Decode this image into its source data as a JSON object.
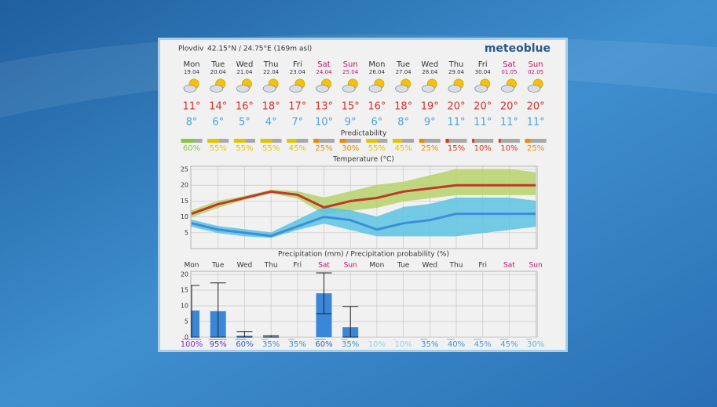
{
  "header": {
    "location": "Plovdiv",
    "coordinates": "42.15°N / 24.75°E (169m asl)",
    "brand": "meteoblue"
  },
  "days": [
    {
      "day": "Mon",
      "date": "19.04",
      "max": "11°",
      "min": "8°",
      "color": "#333333"
    },
    {
      "day": "Tue",
      "date": "20.04",
      "max": "14°",
      "min": "6°",
      "color": "#333333"
    },
    {
      "day": "Wed",
      "date": "21.04",
      "max": "16°",
      "min": "5°",
      "color": "#333333"
    },
    {
      "day": "Thu",
      "date": "22.04",
      "max": "18°",
      "min": "4°",
      "color": "#333333"
    },
    {
      "day": "Fri",
      "date": "23.04",
      "max": "17°",
      "min": "7°",
      "color": "#333333"
    },
    {
      "day": "Sat",
      "date": "24.04",
      "max": "13°",
      "min": "10°",
      "color": "#c0106a"
    },
    {
      "day": "Sun",
      "date": "25.04",
      "max": "15°",
      "min": "9°",
      "color": "#c0106a"
    },
    {
      "day": "Mon",
      "date": "26.04",
      "max": "16°",
      "min": "6°",
      "color": "#333333"
    },
    {
      "day": "Tue",
      "date": "27.04",
      "max": "18°",
      "min": "8°",
      "color": "#333333"
    },
    {
      "day": "Wed",
      "date": "28.04",
      "max": "19°",
      "min": "9°",
      "color": "#333333"
    },
    {
      "day": "Thu",
      "date": "29.04",
      "max": "20°",
      "min": "11°",
      "color": "#333333"
    },
    {
      "day": "Fri",
      "date": "30.04",
      "max": "20°",
      "min": "11°",
      "color": "#333333"
    },
    {
      "day": "Sat",
      "date": "01.05",
      "max": "20°",
      "min": "11°",
      "color": "#c0106a"
    },
    {
      "day": "Sun",
      "date": "02.05",
      "max": "20°",
      "min": "11°",
      "color": "#c0106a"
    }
  ],
  "chart_data": [
    {
      "type": "strip",
      "title": "Predictability",
      "values": [
        60,
        55,
        55,
        55,
        45,
        25,
        30,
        55,
        45,
        25,
        15,
        10,
        10,
        25
      ],
      "value_labels": [
        "60%",
        "55%",
        "55%",
        "55%",
        "45%",
        "25%",
        "30%",
        "55%",
        "45%",
        "25%",
        "15%",
        "10%",
        "10%",
        "25%"
      ],
      "colors": [
        "#8cc63f",
        "#e3c400",
        "#e3c400",
        "#e3c400",
        "#e3c400",
        "#ee8a00",
        "#ee8a00",
        "#e3c400",
        "#e3c400",
        "#ee8a00",
        "#d9361e",
        "#d9361e",
        "#d9361e",
        "#ee8a00"
      ]
    },
    {
      "type": "line",
      "title": "Temperature (°C)",
      "ylim": [
        0,
        26
      ],
      "yticks": [
        5,
        10,
        15,
        20,
        25
      ],
      "grid": true,
      "bands": [
        {
          "color": "#b7d46c",
          "low": [
            10,
            13,
            15.5,
            17.5,
            16,
            11,
            12,
            13,
            15,
            16,
            17,
            17,
            17,
            17
          ],
          "high": [
            12,
            15,
            16.5,
            18.5,
            18,
            16,
            18,
            20,
            21,
            23,
            25,
            25,
            25,
            24
          ]
        },
        {
          "color": "#5ec4e2",
          "low": [
            7,
            5,
            4,
            3.5,
            6,
            8,
            6,
            4,
            4,
            4,
            4,
            5,
            6,
            7
          ],
          "high": [
            9,
            7,
            6,
            5,
            9,
            13,
            12,
            10,
            13,
            14,
            16,
            16,
            16,
            15
          ]
        }
      ],
      "series": [
        {
          "color": "#c0392b",
          "values": [
            11,
            14,
            16,
            18,
            17,
            13,
            15,
            16,
            18,
            19,
            20,
            20,
            20,
            20
          ]
        },
        {
          "color": "#3a8fd8",
          "values": [
            8,
            6,
            5,
            4,
            7,
            10,
            9,
            6,
            8,
            9,
            11,
            11,
            11,
            11
          ]
        }
      ]
    },
    {
      "type": "bar",
      "title": "Precipitation (mm) / Precipitation probability (%)",
      "ylim": [
        0,
        21
      ],
      "yticks": [
        0,
        5,
        10,
        15,
        20
      ],
      "grid": true,
      "color": "#3a86d8",
      "values": [
        8.5,
        8.3,
        0.5,
        0.2,
        0,
        14,
        3.2,
        0,
        0,
        0,
        0,
        0,
        0,
        0
      ],
      "error_low": [
        0,
        0,
        0,
        0,
        0,
        7.5,
        0,
        0,
        0,
        0,
        0,
        0,
        0,
        0
      ],
      "error_high": [
        16.5,
        17.3,
        1.8,
        0.5,
        0,
        20.5,
        9.8,
        0,
        0,
        0,
        0,
        0,
        0,
        0
      ],
      "probability": [
        100,
        95,
        60,
        35,
        35,
        60,
        35,
        10,
        10,
        35,
        40,
        45,
        45,
        30
      ],
      "probability_labels": [
        "100%",
        "95%",
        "60%",
        "35%",
        "35%",
        "60%",
        "35%",
        "10%",
        "10%",
        "35%",
        "40%",
        "45%",
        "45%",
        "30%"
      ],
      "probability_colors": [
        "#8a2bd0",
        "#5a34b8",
        "#2f5fc4",
        "#3a8fd8",
        "#3a8fd8",
        "#2f5fc4",
        "#3a8fd8",
        "#8fd3f2",
        "#8fd3f2",
        "#3a8fd8",
        "#3d95dc",
        "#4aa0e0",
        "#4aa0e0",
        "#63b5ea"
      ]
    }
  ]
}
